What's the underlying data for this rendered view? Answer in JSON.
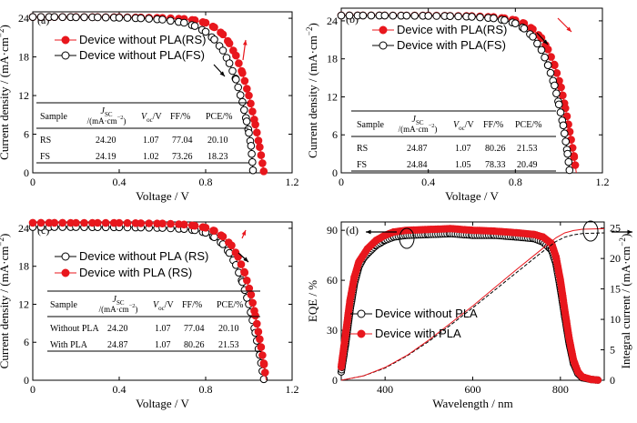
{
  "colors": {
    "red": "#e8171d",
    "black": "#000000"
  },
  "chart_data": [
    {
      "type": "line",
      "panel_label": "(a)",
      "xlabel": "Voltage / V",
      "ylabel": "Current density / (mA·cm⁻²)",
      "xlim": [
        0,
        1.2
      ],
      "ylim": [
        0,
        25
      ],
      "xticks": [
        "0",
        "0.4",
        "0.8",
        "1.2"
      ],
      "yticks": [
        "0",
        "6",
        "12",
        "18",
        "24"
      ],
      "legend": "top-left",
      "series": [
        {
          "name": "Device without PLA(RS)",
          "color": "#e8171d",
          "marker": "filled",
          "points": [
            [
              0,
              24.2
            ],
            [
              0.1,
              24.2
            ],
            [
              0.2,
              24.19
            ],
            [
              0.3,
              24.18
            ],
            [
              0.4,
              24.16
            ],
            [
              0.5,
              24.12
            ],
            [
              0.6,
              24.05
            ],
            [
              0.7,
              23.9
            ],
            [
              0.75,
              23.7
            ],
            [
              0.8,
              23.3
            ],
            [
              0.84,
              22.6
            ],
            [
              0.88,
              21.5
            ],
            [
              0.91,
              20.1
            ],
            [
              0.94,
              18.2
            ],
            [
              0.97,
              15.5
            ],
            [
              1.0,
              12.0
            ],
            [
              1.03,
              7.5
            ],
            [
              1.05,
              4.0
            ],
            [
              1.07,
              0
            ]
          ]
        },
        {
          "name": "Device without PLA(FS)",
          "color": "#000000",
          "marker": "open",
          "points": [
            [
              0,
              24.19
            ],
            [
              0.1,
              24.19
            ],
            [
              0.2,
              24.17
            ],
            [
              0.3,
              24.15
            ],
            [
              0.4,
              24.1
            ],
            [
              0.5,
              24.0
            ],
            [
              0.6,
              23.8
            ],
            [
              0.7,
              23.3
            ],
            [
              0.75,
              22.8
            ],
            [
              0.8,
              21.9
            ],
            [
              0.84,
              20.7
            ],
            [
              0.88,
              19.0
            ],
            [
              0.91,
              17.0
            ],
            [
              0.94,
              14.5
            ],
            [
              0.97,
              11.0
            ],
            [
              0.99,
              8.0
            ],
            [
              1.0,
              6.2
            ],
            [
              1.01,
              4.2
            ],
            [
              1.02,
              0
            ]
          ]
        }
      ],
      "table": {
        "headers": [
          "Sample",
          "J_SC /(mA·cm⁻²)",
          "V_oc/V",
          "FF/%",
          "PCE/%"
        ],
        "rows": [
          [
            "RS",
            "24.20",
            "1.07",
            "77.04",
            "20.10"
          ],
          [
            "FS",
            "24.19",
            "1.02",
            "73.26",
            "18.23"
          ]
        ]
      }
    },
    {
      "type": "line",
      "panel_label": "(b)",
      "xlabel": "Voltage / V",
      "ylabel": "Current density / (mA·cm⁻²)",
      "xlim": [
        0,
        1.2
      ],
      "ylim": [
        0,
        26
      ],
      "xticks": [
        "0",
        "0.4",
        "0.8",
        "1.2"
      ],
      "yticks": [
        "0",
        "6",
        "12",
        "18",
        "24"
      ],
      "legend": "top-left",
      "series": [
        {
          "name": "Device with PLA(RS)",
          "color": "#e8171d",
          "marker": "filled",
          "points": [
            [
              0,
              24.87
            ],
            [
              0.1,
              24.87
            ],
            [
              0.2,
              24.86
            ],
            [
              0.3,
              24.85
            ],
            [
              0.4,
              24.84
            ],
            [
              0.5,
              24.8
            ],
            [
              0.6,
              24.75
            ],
            [
              0.7,
              24.6
            ],
            [
              0.75,
              24.4
            ],
            [
              0.8,
              24.1
            ],
            [
              0.84,
              23.6
            ],
            [
              0.88,
              22.7
            ],
            [
              0.92,
              21.3
            ],
            [
              0.95,
              19.5
            ],
            [
              0.98,
              17.0
            ],
            [
              1.01,
              13.5
            ],
            [
              1.03,
              10.2
            ],
            [
              1.05,
              6.5
            ],
            [
              1.07,
              2.5
            ],
            [
              1.08,
              0
            ]
          ]
        },
        {
          "name": "Device with PLA(FS)",
          "color": "#000000",
          "marker": "open",
          "points": [
            [
              0,
              24.84
            ],
            [
              0.1,
              24.84
            ],
            [
              0.2,
              24.83
            ],
            [
              0.3,
              24.82
            ],
            [
              0.4,
              24.8
            ],
            [
              0.5,
              24.75
            ],
            [
              0.6,
              24.65
            ],
            [
              0.7,
              24.4
            ],
            [
              0.75,
              24.1
            ],
            [
              0.8,
              23.6
            ],
            [
              0.84,
              22.8
            ],
            [
              0.88,
              21.5
            ],
            [
              0.92,
              19.4
            ],
            [
              0.95,
              17.0
            ],
            [
              0.98,
              13.8
            ],
            [
              1.0,
              10.8
            ],
            [
              1.02,
              7.5
            ],
            [
              1.04,
              3.0
            ],
            [
              1.05,
              0
            ]
          ]
        }
      ],
      "table": {
        "headers": [
          "Sample",
          "J_SC /(mA·cm⁻²)",
          "V_oc/V",
          "FF/%",
          "PCE/%"
        ],
        "rows": [
          [
            "RS",
            "24.87",
            "1.07",
            "80.26",
            "21.53"
          ],
          [
            "FS",
            "24.84",
            "1.05",
            "78.33",
            "20.49"
          ]
        ]
      }
    },
    {
      "type": "line",
      "panel_label": "(c)",
      "xlabel": "Voltage / V",
      "ylabel": "Current density / (mA·cm⁻²)",
      "xlim": [
        0,
        1.2
      ],
      "ylim": [
        0,
        25
      ],
      "xticks": [
        "0",
        "0.4",
        "0.8",
        "1.2"
      ],
      "yticks": [
        "0",
        "6",
        "12",
        "18",
        "24"
      ],
      "legend": "top-left",
      "series": [
        {
          "name": "Device without PLA (RS)",
          "color": "#000000",
          "marker": "open",
          "points": [
            [
              0,
              24.2
            ],
            [
              0.1,
              24.2
            ],
            [
              0.2,
              24.19
            ],
            [
              0.3,
              24.18
            ],
            [
              0.4,
              24.16
            ],
            [
              0.5,
              24.12
            ],
            [
              0.6,
              24.05
            ],
            [
              0.7,
              23.9
            ],
            [
              0.75,
              23.7
            ],
            [
              0.8,
              23.3
            ],
            [
              0.84,
              22.6
            ],
            [
              0.88,
              21.5
            ],
            [
              0.91,
              20.1
            ],
            [
              0.94,
              18.2
            ],
            [
              0.97,
              15.5
            ],
            [
              1.0,
              12.0
            ],
            [
              1.03,
              7.5
            ],
            [
              1.05,
              4.0
            ],
            [
              1.07,
              0
            ]
          ]
        },
        {
          "name": "Device with PLA (RS)",
          "color": "#e8171d",
          "marker": "filled",
          "points": [
            [
              0,
              24.87
            ],
            [
              0.1,
              24.87
            ],
            [
              0.2,
              24.86
            ],
            [
              0.3,
              24.85
            ],
            [
              0.4,
              24.84
            ],
            [
              0.5,
              24.8
            ],
            [
              0.6,
              24.75
            ],
            [
              0.7,
              24.6
            ],
            [
              0.75,
              24.4
            ],
            [
              0.8,
              24.1
            ],
            [
              0.84,
              23.6
            ],
            [
              0.88,
              22.7
            ],
            [
              0.92,
              21.3
            ],
            [
              0.95,
              19.5
            ],
            [
              0.98,
              17.0
            ],
            [
              1.01,
              13.5
            ],
            [
              1.03,
              10.2
            ],
            [
              1.05,
              6.5
            ],
            [
              1.07,
              2.5
            ],
            [
              1.08,
              0
            ]
          ]
        }
      ],
      "table": {
        "headers": [
          "Sample",
          "J_SC /(mA·cm⁻²)",
          "V_oc/V",
          "FF/%",
          "PCE/%"
        ],
        "rows": [
          [
            "Without PLA",
            "24.20",
            "1.07",
            "77.04",
            "20.10"
          ],
          [
            "With PLA",
            "24.87",
            "1.07",
            "80.26",
            "21.53"
          ]
        ]
      }
    },
    {
      "type": "line",
      "panel_label": "(d)",
      "xlabel": "Wavelength / nm",
      "ylabel": "EQE / %",
      "y2label": "Integral current / (mA·cm⁻²)",
      "xlim": [
        300,
        900
      ],
      "ylim": [
        0,
        95
      ],
      "y2lim": [
        0,
        26
      ],
      "xticks": [
        "400",
        "600",
        "800"
      ],
      "yticks": [
        "0",
        "30",
        "60",
        "90"
      ],
      "y2ticks": [
        "0",
        "5",
        "10",
        "15",
        "20",
        "25"
      ],
      "legend": "center-left",
      "series": [
        {
          "name": "Device without PLA",
          "color": "#000000",
          "marker": "open",
          "axis": "left",
          "points": [
            [
              300,
              5
            ],
            [
              310,
              22
            ],
            [
              320,
              42
            ],
            [
              330,
              58
            ],
            [
              340,
              68
            ],
            [
              350,
              73
            ],
            [
              360,
              76
            ],
            [
              380,
              81
            ],
            [
              400,
              84
            ],
            [
              420,
              86
            ],
            [
              450,
              87
            ],
            [
              500,
              87.5
            ],
            [
              550,
              88
            ],
            [
              600,
              87
            ],
            [
              650,
              87
            ],
            [
              700,
              86
            ],
            [
              740,
              85
            ],
            [
              760,
              83
            ],
            [
              780,
              78
            ],
            [
              790,
              70
            ],
            [
              800,
              55
            ],
            [
              810,
              38
            ],
            [
              820,
              22
            ],
            [
              830,
              10
            ],
            [
              840,
              4
            ],
            [
              850,
              1.5
            ],
            [
              870,
              0.5
            ],
            [
              890,
              0
            ]
          ]
        },
        {
          "name": "Device with PLA",
          "color": "#e8171d",
          "marker": "filled",
          "axis": "left",
          "points": [
            [
              300,
              8
            ],
            [
              310,
              28
            ],
            [
              320,
              48
            ],
            [
              330,
              62
            ],
            [
              340,
              71
            ],
            [
              350,
              75
            ],
            [
              360,
              79
            ],
            [
              380,
              84
            ],
            [
              400,
              87
            ],
            [
              420,
              89
            ],
            [
              450,
              90
            ],
            [
              500,
              90.5
            ],
            [
              550,
              91
            ],
            [
              600,
              90
            ],
            [
              650,
              89.5
            ],
            [
              700,
              88.5
            ],
            [
              740,
              87.5
            ],
            [
              760,
              86
            ],
            [
              780,
              82
            ],
            [
              790,
              74
            ],
            [
              800,
              60
            ],
            [
              810,
              42
            ],
            [
              820,
              25
            ],
            [
              830,
              12
            ],
            [
              840,
              5
            ],
            [
              850,
              2
            ],
            [
              870,
              0.5
            ],
            [
              890,
              0
            ]
          ]
        },
        {
          "name": "",
          "color": "#000000",
          "marker": "line-dashed",
          "axis": "right",
          "points": [
            [
              300,
              0
            ],
            [
              350,
              0.7
            ],
            [
              400,
              2
            ],
            [
              450,
              4
            ],
            [
              500,
              6.4
            ],
            [
              550,
              9.1
            ],
            [
              600,
              11.9
            ],
            [
              650,
              14.8
            ],
            [
              700,
              17.7
            ],
            [
              750,
              20.6
            ],
            [
              790,
              22.8
            ],
            [
              810,
              23.5
            ],
            [
              830,
              23.9
            ],
            [
              850,
              24.1
            ],
            [
              900,
              24.2
            ]
          ]
        },
        {
          "name": "",
          "color": "#e8171d",
          "marker": "line-solid",
          "axis": "right",
          "points": [
            [
              300,
              0
            ],
            [
              350,
              0.7
            ],
            [
              400,
              2.1
            ],
            [
              450,
              4.1
            ],
            [
              500,
              6.6
            ],
            [
              550,
              9.4
            ],
            [
              600,
              12.2
            ],
            [
              650,
              15.2
            ],
            [
              700,
              18.2
            ],
            [
              750,
              21.1
            ],
            [
              790,
              23.4
            ],
            [
              810,
              24.2
            ],
            [
              830,
              24.6
            ],
            [
              850,
              24.8
            ],
            [
              900,
              24.9
            ]
          ]
        }
      ]
    }
  ]
}
